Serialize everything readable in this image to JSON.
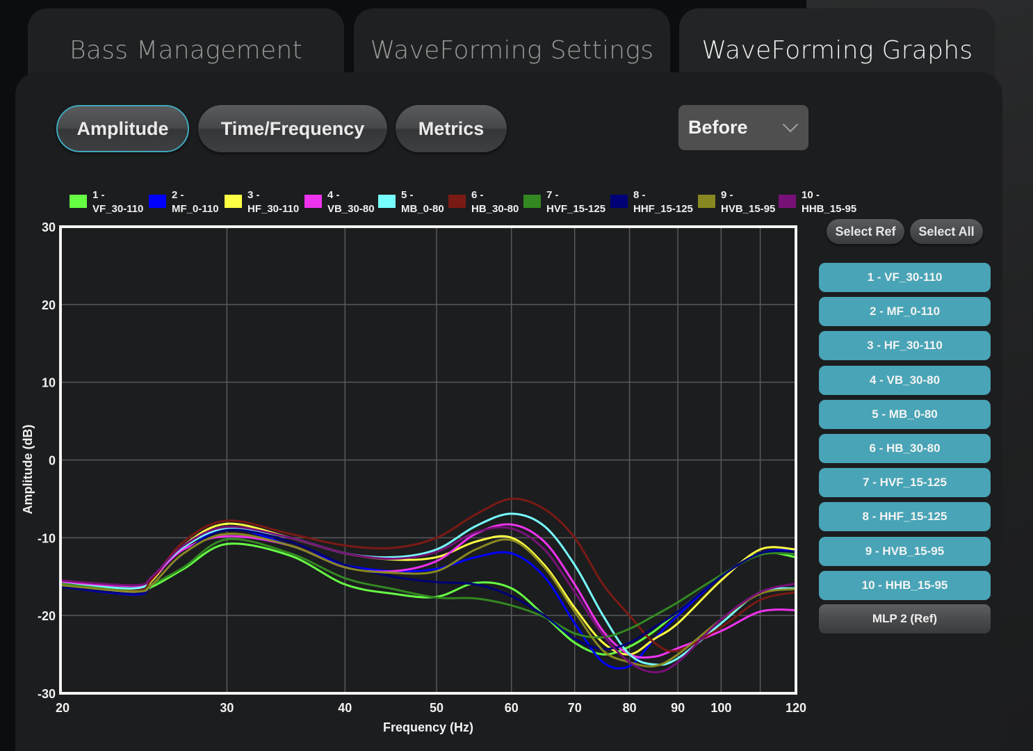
{
  "tabs": [
    {
      "label": "Bass Management",
      "active": false
    },
    {
      "label": "WaveForming Settings",
      "active": false
    },
    {
      "label": "WaveForming Graphs",
      "active": true
    }
  ],
  "modes": [
    {
      "label": "Amplitude",
      "selected": true
    },
    {
      "label": "Time/Frequency",
      "selected": false
    },
    {
      "label": "Metrics",
      "selected": false
    }
  ],
  "dropdown": {
    "value": "Before"
  },
  "side_panel": {
    "select_ref": "Select Ref",
    "select_all": "Select All",
    "series_buttons": [
      "1 - VF_30-110",
      "2 - MF_0-110",
      "3 - HF_30-110",
      "4 - VB_30-80",
      "5 - MB_0-80",
      "6 - HB_30-80",
      "7 - HVF_15-125",
      "8 - HHF_15-125",
      "9 - HVB_15-95",
      "10 - HHB_15-95"
    ],
    "ref_button": "MLP 2 (Ref)"
  },
  "colors": {
    "accent": "#48a4b6",
    "selected_border": "#3fa9bd"
  },
  "chart_data": {
    "type": "line",
    "title": "",
    "xlabel": "Frequency (Hz)",
    "ylabel": "Amplitude (dB)",
    "xscale": "log",
    "xlim": [
      20,
      120
    ],
    "ylim": [
      -30,
      30
    ],
    "grid": true,
    "legend_position": "top",
    "x_ticks": [
      20,
      30,
      40,
      50,
      60,
      70,
      80,
      90,
      100,
      120
    ],
    "x_tick_labels": [
      "20",
      "30",
      "40",
      "50",
      "60",
      "70",
      "80",
      "90",
      "100",
      "120"
    ],
    "y_ticks": [
      30,
      20,
      10,
      0,
      -10,
      -20,
      -30
    ],
    "y_tick_labels": [
      "30",
      "20",
      "10",
      "0",
      "-10",
      "-20",
      "-30"
    ],
    "x_grid": [
      30,
      40,
      50,
      60,
      70,
      80,
      90,
      100,
      110
    ],
    "x": [
      20,
      24,
      25,
      27,
      30,
      35,
      40,
      45,
      50,
      55,
      60,
      65,
      70,
      75,
      80,
      85,
      90,
      100,
      110,
      120
    ],
    "series": [
      {
        "num": "1 -",
        "name": "VF_30-110",
        "color": "#66ff44",
        "values": [
          -15.8,
          -16.8,
          -16.3,
          -14.0,
          -10.8,
          -12.3,
          -16.0,
          -17.2,
          -17.6,
          -15.8,
          -16.5,
          -20.0,
          -23.5,
          -25.0,
          -24.0,
          -22.0,
          -19.5,
          -15.0,
          -12.0,
          -12.5
        ]
      },
      {
        "num": "2 -",
        "name": "MF_0-110",
        "color": "#0000ff",
        "values": [
          -16.3,
          -17.3,
          -16.0,
          -12.0,
          -8.8,
          -11.0,
          -13.5,
          -14.3,
          -14.0,
          -12.5,
          -12.0,
          -15.0,
          -21.0,
          -26.0,
          -26.5,
          -23.0,
          -20.0,
          -15.0,
          -12.0,
          -11.5
        ]
      },
      {
        "num": "3 -",
        "name": "HF_30-110",
        "color": "#ffff44",
        "values": [
          -16.0,
          -17.0,
          -15.5,
          -11.0,
          -8.2,
          -10.0,
          -12.0,
          -12.8,
          -12.5,
          -10.5,
          -10.0,
          -13.5,
          -19.0,
          -23.5,
          -25.0,
          -23.0,
          -21.0,
          -15.5,
          -11.5,
          -11.5
        ]
      },
      {
        "num": "4 -",
        "name": "VB_30-80",
        "color": "#ee33ee",
        "values": [
          -15.7,
          -16.2,
          -15.2,
          -11.5,
          -9.8,
          -11.0,
          -13.8,
          -14.3,
          -13.0,
          -9.5,
          -8.3,
          -10.5,
          -16.0,
          -22.0,
          -25.0,
          -25.3,
          -24.2,
          -22.0,
          -19.5,
          -19.3
        ]
      },
      {
        "num": "5 -",
        "name": "MB_0-80",
        "color": "#77ffff",
        "values": [
          -15.9,
          -16.5,
          -15.0,
          -11.2,
          -8.8,
          -10.0,
          -12.0,
          -12.5,
          -11.5,
          -8.5,
          -6.9,
          -8.5,
          -13.5,
          -20.0,
          -25.0,
          -26.3,
          -25.5,
          -21.0,
          -17.0,
          -16.5
        ]
      },
      {
        "num": "6 -",
        "name": "HB_30-80",
        "color": "#7a1a14",
        "values": [
          -16.0,
          -16.8,
          -15.3,
          -10.5,
          -7.8,
          -9.5,
          -11.0,
          -11.3,
          -10.0,
          -7.0,
          -5.0,
          -6.3,
          -10.0,
          -16.0,
          -20.0,
          -23.5,
          -24.5,
          -21.5,
          -18.0,
          -17.0
        ]
      },
      {
        "num": "7 -",
        "name": "HVF_15-125",
        "color": "#338822",
        "values": [
          -15.9,
          -16.9,
          -16.0,
          -13.8,
          -10.2,
          -12.0,
          -15.2,
          -16.6,
          -17.7,
          -17.8,
          -18.7,
          -20.2,
          -22.3,
          -22.8,
          -21.7,
          -20.0,
          -18.3,
          -14.8,
          -12.2,
          -12.1
        ]
      },
      {
        "num": "8 -",
        "name": "HHF_15-125",
        "color": "#000077",
        "values": [
          -16.3,
          -17.2,
          -16.0,
          -12.0,
          -9.0,
          -10.5,
          -13.5,
          -15.0,
          -15.7,
          -16.0,
          -17.5,
          -20.0,
          -23.0,
          -24.3,
          -23.5,
          -21.5,
          -19.5,
          -15.0,
          -12.0,
          -11.8
        ]
      },
      {
        "num": "9 -",
        "name": "HVB_15-95",
        "color": "#888822",
        "values": [
          -16.1,
          -16.9,
          -16.0,
          -12.0,
          -9.5,
          -11.0,
          -13.8,
          -14.5,
          -14.3,
          -11.5,
          -10.3,
          -13.8,
          -19.5,
          -24.5,
          -26.0,
          -26.5,
          -25.0,
          -20.5,
          -17.2,
          -16.6
        ]
      },
      {
        "num": "10 -",
        "name": "HHB_15-95",
        "color": "#771177",
        "values": [
          -15.5,
          -16.1,
          -15.0,
          -11.0,
          -8.6,
          -10.0,
          -12.0,
          -12.7,
          -11.8,
          -9.3,
          -8.8,
          -11.5,
          -17.0,
          -22.5,
          -26.0,
          -27.3,
          -26.0,
          -20.5,
          -17.0,
          -15.9
        ]
      }
    ]
  }
}
